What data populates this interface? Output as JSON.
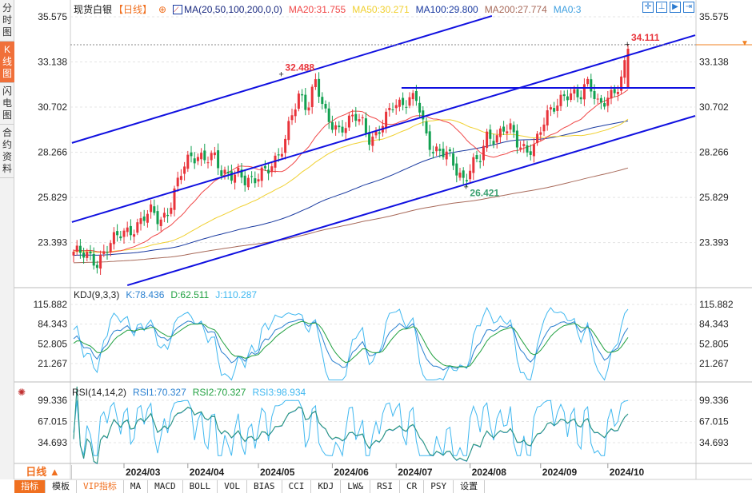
{
  "sidebar": {
    "tabs": [
      {
        "label": "分时图"
      },
      {
        "label": "K线图",
        "active": true
      },
      {
        "label": "闪电图"
      },
      {
        "label": "合约资料"
      }
    ]
  },
  "legend": {
    "symbol": "现货白银",
    "period": "【日线】",
    "ma_title": "MA(20,50,100,200,0,0)",
    "ma20": "MA20:31.755",
    "ma50": "MA50:30.271",
    "ma100": "MA100:29.800",
    "ma200": "MA200:27.774",
    "ma0": "MA0:3"
  },
  "kdj": {
    "title": "KDJ(9,3,3)",
    "k": "K:78.436",
    "d": "D:62.511",
    "j": "J:110.287"
  },
  "rsi": {
    "title": "RSI(14,14,2)",
    "rsi1": "RSI1:70.327",
    "rsi2": "RSI2:70.327",
    "rsi3": "RSI3:98.934"
  },
  "bottom": {
    "period_label": "日线 ▲",
    "tabs": [
      "指标",
      "模板",
      "VIP指标",
      "MA",
      "MACD",
      "BOLL",
      "VOL",
      "BIAS",
      "CCI",
      "KDJ",
      "LW&",
      "RSI",
      "CR",
      "PSY",
      "设置"
    ]
  },
  "colors": {
    "up": "#e8333a",
    "down": "#12a050",
    "ma20": "#f04848",
    "ma50": "#f0d030",
    "ma100": "#1a3aa0",
    "ma200": "#a86a5a",
    "trend": "#1010e0",
    "k": "#2a80d0",
    "d": "#20a040",
    "j": "#40b8f0"
  },
  "chart_data": {
    "type": "candlestick",
    "price_axis_ticks": [
      "35.575",
      "33.138",
      "30.702",
      "28.266",
      "25.829",
      "23.393"
    ],
    "kdj_axis_ticks": [
      "115.882",
      "84.343",
      "52.805",
      "21.267"
    ],
    "rsi_axis_ticks": [
      "99.336",
      "67.015",
      "34.693"
    ],
    "x_ticks": [
      {
        "label": "2024/03",
        "bar": 15
      },
      {
        "label": "2024/04",
        "bar": 34
      },
      {
        "label": "2024/05",
        "bar": 55
      },
      {
        "label": "2024/06",
        "bar": 77
      },
      {
        "label": "2024/07",
        "bar": 96
      },
      {
        "label": "2024/08",
        "bar": 118
      },
      {
        "label": "2024/09",
        "bar": 139
      },
      {
        "label": "2024/10",
        "bar": 159
      }
    ],
    "close_anchors": [
      22.9,
      22.7,
      22.6,
      22.4,
      23.0,
      23.4,
      23.8,
      24.1,
      24.3,
      24.7,
      25.0,
      24.6,
      25.1,
      26.2,
      27.3,
      28.0,
      28.2,
      28.0,
      27.9,
      27.0,
      27.2,
      27.3,
      26.6,
      26.5,
      27.3,
      27.6,
      27.8,
      28.5,
      30.5,
      31.6,
      30.6,
      32.0,
      30.5,
      30.0,
      29.5,
      29.6,
      30.2,
      30.0,
      29.0,
      29.2,
      30.0,
      31.0,
      31.0,
      31.1,
      31.0,
      29.3,
      28.5,
      28.4,
      28.0,
      27.2,
      26.8,
      27.8,
      27.8,
      29.0,
      29.0,
      29.8,
      29.5,
      28.4,
      28.3,
      28.8,
      29.8,
      30.3,
      30.8,
      31.6,
      31.5,
      31.2,
      32.0,
      31.0,
      31.2,
      31.3,
      31.7,
      33.9
    ],
    "bars": 166,
    "annotations": [
      {
        "label": "32.488",
        "bar": 62,
        "price": 32.488,
        "color": "#e8333a"
      },
      {
        "label": "26.421",
        "bar": 117,
        "price": 26.421,
        "color": "#3aa070"
      },
      {
        "label": "34.111",
        "bar": 165,
        "price": 34.111,
        "color": "#e8333a"
      }
    ],
    "last_price": 34.111,
    "trendlines": [
      {
        "from": [
          -0.5,
          28.77
        ],
        "to": [
          124.5,
          35.62
        ]
      },
      {
        "from": [
          -0.5,
          24.5
        ],
        "to": [
          185,
          34.58
        ]
      },
      {
        "from": [
          16,
          21.09
        ],
        "to": [
          185,
          30.23
        ]
      },
      {
        "from": [
          97.6,
          31.74
        ],
        "to": [
          185,
          31.74
        ]
      }
    ]
  }
}
